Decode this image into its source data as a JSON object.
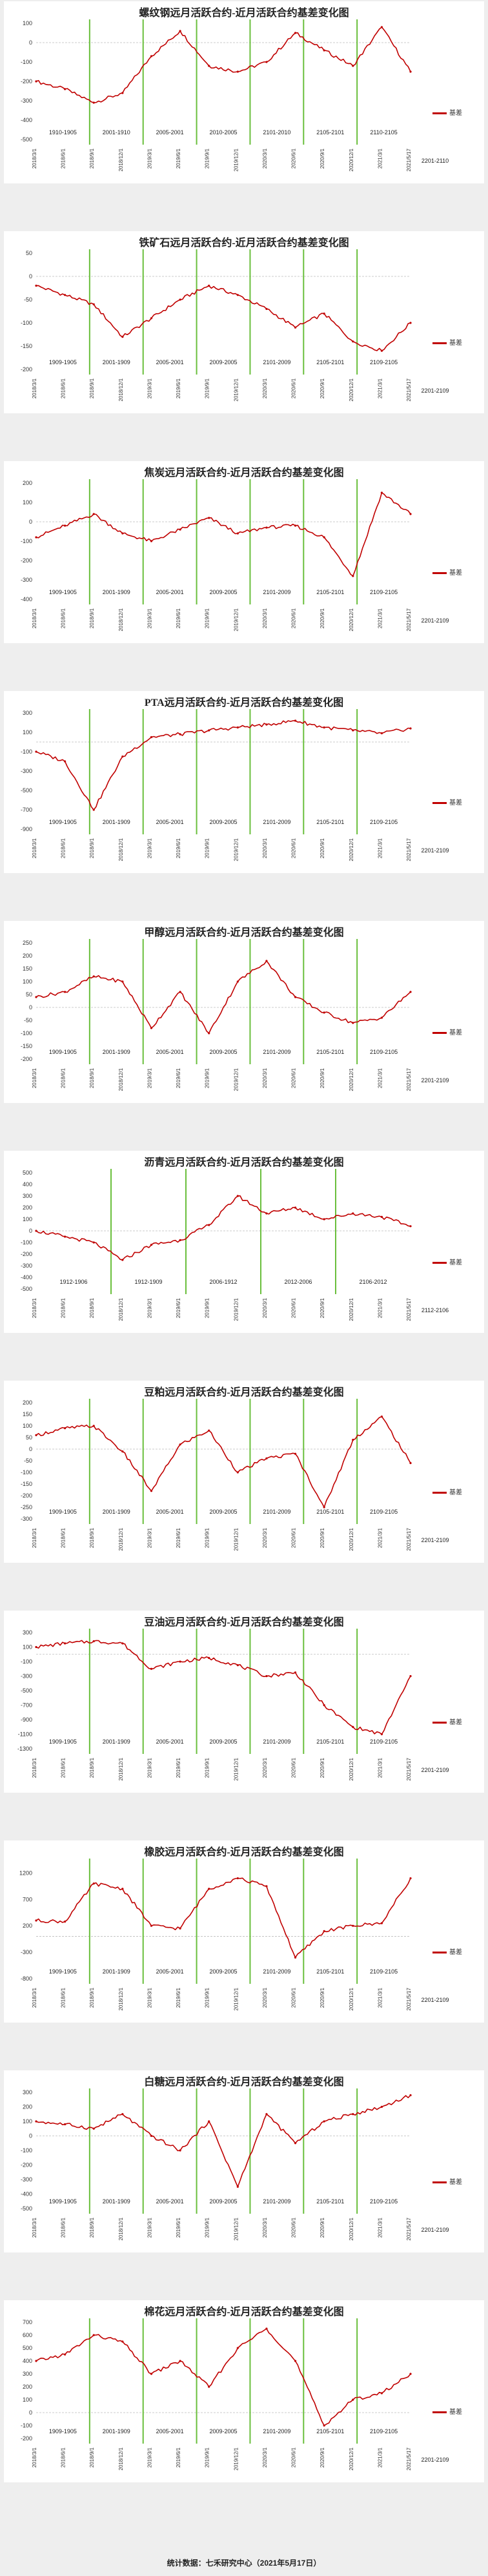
{
  "footer": "统计数据：七禾研究中心（2021年5月17日）",
  "colors": {
    "series": "#c00000",
    "divider": "#6abf3c",
    "panel": "#ffffff",
    "background": "#eeeeee"
  },
  "chart_data": [
    {
      "type": "line",
      "title": "螺纹钢远月活跃合约-近月活跃合约基差变化图",
      "legend": "基差",
      "legend_position": "right",
      "ylim": [
        -500,
        100
      ],
      "yticks": [
        -500,
        -400,
        -300,
        -200,
        -100,
        0,
        100
      ],
      "x": [
        "2018/3/1",
        "2018/6/1",
        "2018/9/1",
        "2018/12/1",
        "2019/3/1",
        "2019/6/1",
        "2019/9/1",
        "2019/12/1",
        "2020/3/1",
        "2020/6/1",
        "2020/9/1",
        "2020/12/1",
        "2021/3/1",
        "2021/5/17"
      ],
      "y": [
        -200,
        -240,
        -310,
        -260,
        -70,
        60,
        -120,
        -150,
        -100,
        50,
        -40,
        -120,
        80,
        -150
      ],
      "periods": [
        "1910-1905",
        "2001-1910",
        "2005-2001",
        "2010-2005",
        "2101-2010",
        "2105-2101",
        "2110-2105",
        "2201-2110"
      ]
    },
    {
      "type": "line",
      "title": "铁矿石远月活跃合约-近月活跃合约基差变化图",
      "legend": "基差",
      "legend_position": "right",
      "ylim": [
        -200,
        50
      ],
      "yticks": [
        -200,
        -150,
        -100,
        -50,
        0,
        50
      ],
      "x": [
        "2018/3/1",
        "2018/6/1",
        "2018/9/1",
        "2018/12/1",
        "2019/3/1",
        "2019/6/1",
        "2019/9/1",
        "2019/12/1",
        "2020/3/1",
        "2020/6/1",
        "2020/9/1",
        "2020/12/1",
        "2021/3/1",
        "2021/5/17"
      ],
      "y": [
        -20,
        -40,
        -60,
        -130,
        -90,
        -50,
        -20,
        -40,
        -70,
        -110,
        -80,
        -140,
        -160,
        -100
      ],
      "periods": [
        "1909-1905",
        "2001-1909",
        "2005-2001",
        "2009-2005",
        "2101-2009",
        "2105-2101",
        "2109-2105",
        "2201-2109"
      ]
    },
    {
      "type": "line",
      "title": "焦炭远月活跃合约-近月活跃合约基差变化图",
      "legend": "基差",
      "legend_position": "right",
      "ylim": [
        -400,
        200
      ],
      "yticks": [
        -400,
        -300,
        -200,
        -100,
        0,
        100,
        200
      ],
      "x": [
        "2018/3/1",
        "2018/6/1",
        "2018/9/1",
        "2018/12/1",
        "2019/3/1",
        "2019/6/1",
        "2019/9/1",
        "2019/12/1",
        "2020/3/1",
        "2020/6/1",
        "2020/9/1",
        "2020/12/1",
        "2021/3/1",
        "2021/5/17"
      ],
      "y": [
        -80,
        -20,
        40,
        -60,
        -100,
        -40,
        20,
        -60,
        -30,
        -20,
        -80,
        -280,
        150,
        40
      ],
      "periods": [
        "1909-1905",
        "2001-1909",
        "2005-2001",
        "2009-2005",
        "2101-2009",
        "2105-2101",
        "2109-2105",
        "2201-2109"
      ]
    },
    {
      "type": "line",
      "title": "PTA远月活跃合约-近月活跃合约基差变化图",
      "legend": "基差",
      "legend_position": "right",
      "ylim": [
        -900,
        300
      ],
      "yticks": [
        -900,
        -700,
        -500,
        -300,
        -100,
        100,
        300
      ],
      "x": [
        "2018/3/1",
        "2018/6/1",
        "2018/9/1",
        "2018/12/1",
        "2019/3/1",
        "2019/6/1",
        "2019/9/1",
        "2019/12/1",
        "2020/3/1",
        "2020/6/1",
        "2020/9/1",
        "2020/12/1",
        "2021/3/1",
        "2021/5/17"
      ],
      "y": [
        -100,
        -200,
        -700,
        -150,
        50,
        80,
        120,
        150,
        180,
        220,
        150,
        120,
        90,
        140
      ],
      "periods": [
        "1909-1905",
        "2001-1909",
        "2005-2001",
        "2009-2005",
        "2101-2009",
        "2105-2101",
        "2109-2105",
        "2201-2109"
      ]
    },
    {
      "type": "line",
      "title": "甲醇远月活跃合约-近月活跃合约基差变化图",
      "legend": "基差",
      "legend_position": "right",
      "ylim": [
        -200,
        250
      ],
      "yticks": [
        -200,
        -150,
        -100,
        -50,
        0,
        50,
        100,
        150,
        200,
        250
      ],
      "x": [
        "2018/3/1",
        "2018/6/1",
        "2018/9/1",
        "2018/12/1",
        "2019/3/1",
        "2019/6/1",
        "2019/9/1",
        "2019/12/1",
        "2020/3/1",
        "2020/6/1",
        "2020/9/1",
        "2020/12/1",
        "2021/3/1",
        "2021/5/17"
      ],
      "y": [
        40,
        60,
        120,
        100,
        -80,
        60,
        -100,
        100,
        180,
        40,
        -20,
        -60,
        -40,
        60
      ],
      "periods": [
        "1909-1905",
        "2001-1909",
        "2005-2001",
        "2009-2005",
        "2101-2009",
        "2105-2101",
        "2109-2105",
        "2201-2109"
      ]
    },
    {
      "type": "line",
      "title": "沥青远月活跃合约-近月活跃合约基差变化图",
      "legend": "基差",
      "legend_position": "right",
      "ylim": [
        -500,
        500
      ],
      "yticks": [
        -500,
        -400,
        -300,
        -200,
        -100,
        0,
        100,
        200,
        300,
        400,
        500
      ],
      "x": [
        "2018/3/1",
        "2018/6/1",
        "2018/9/1",
        "2018/12/1",
        "2019/3/1",
        "2019/6/1",
        "2019/9/1",
        "2019/12/1",
        "2020/3/1",
        "2020/6/1",
        "2020/9/1",
        "2020/12/1",
        "2021/3/1",
        "2021/5/17"
      ],
      "y": [
        0,
        -50,
        -100,
        -250,
        -120,
        -80,
        50,
        300,
        150,
        200,
        100,
        150,
        120,
        40
      ],
      "periods": [
        "1912-1906",
        "1912-1909",
        "2006-1912",
        "2012-2006",
        "2106-2012",
        "2112-2106"
      ]
    },
    {
      "type": "line",
      "title": "豆粕远月活跃合约-近月活跃合约基差变化图",
      "legend": "基差",
      "legend_position": "right",
      "ylim": [
        -300,
        200
      ],
      "yticks": [
        -300,
        -250,
        -200,
        -150,
        -100,
        -50,
        0,
        50,
        100,
        150,
        200
      ],
      "x": [
        "2018/3/1",
        "2018/6/1",
        "2018/9/1",
        "2018/12/1",
        "2019/3/1",
        "2019/6/1",
        "2019/9/1",
        "2019/12/1",
        "2020/3/1",
        "2020/6/1",
        "2020/9/1",
        "2020/12/1",
        "2021/3/1",
        "2021/5/17"
      ],
      "y": [
        60,
        90,
        100,
        -10,
        -180,
        20,
        80,
        -100,
        -40,
        -20,
        -250,
        40,
        140,
        -60
      ],
      "periods": [
        "1909-1905",
        "2001-1909",
        "2005-2001",
        "2009-2005",
        "2101-2009",
        "2105-2101",
        "2109-2105",
        "2201-2109"
      ]
    },
    {
      "type": "line",
      "title": "豆油远月活跃合约-近月活跃合约基差变化图",
      "legend": "基差",
      "legend_position": "right",
      "ylim": [
        -1300,
        300
      ],
      "yticks": [
        -1300,
        -1100,
        -900,
        -700,
        -500,
        -300,
        -100,
        100,
        300
      ],
      "x": [
        "2018/3/1",
        "2018/6/1",
        "2018/9/1",
        "2018/12/1",
        "2019/3/1",
        "2019/6/1",
        "2019/9/1",
        "2019/12/1",
        "2020/3/1",
        "2020/6/1",
        "2020/9/1",
        "2020/12/1",
        "2021/3/1",
        "2021/5/17"
      ],
      "y": [
        100,
        150,
        180,
        150,
        -200,
        -100,
        -50,
        -150,
        -300,
        -250,
        -700,
        -1000,
        -1100,
        -300
      ],
      "periods": [
        "1909-1905",
        "2001-1909",
        "2005-2001",
        "2009-2005",
        "2101-2009",
        "2105-2101",
        "2109-2105",
        "2201-2109"
      ]
    },
    {
      "type": "line",
      "title": "橡胶远月活跃合约-近月活跃合约基差变化图",
      "legend": "基差",
      "legend_position": "right",
      "ylim": [
        -800,
        1400
      ],
      "yticks": [
        -800,
        -300,
        200,
        700,
        1200
      ],
      "x": [
        "2018/3/1",
        "2018/6/1",
        "2018/9/1",
        "2018/12/1",
        "2019/3/1",
        "2019/6/1",
        "2019/9/1",
        "2019/12/1",
        "2020/3/1",
        "2020/6/1",
        "2020/9/1",
        "2020/12/1",
        "2021/3/1",
        "2021/5/17"
      ],
      "y": [
        300,
        280,
        1000,
        900,
        200,
        150,
        900,
        1100,
        950,
        -400,
        100,
        200,
        250,
        1100
      ],
      "periods": [
        "1909-1905",
        "2001-1909",
        "2005-2001",
        "2009-2005",
        "2101-2009",
        "2105-2101",
        "2109-2105",
        "2201-2109"
      ]
    },
    {
      "type": "line",
      "title": "白糖远月活跃合约-近月活跃合约基差变化图",
      "legend": "基差",
      "legend_position": "right",
      "ylim": [
        -500,
        300
      ],
      "yticks": [
        -500,
        -400,
        -300,
        -200,
        -100,
        0,
        100,
        200,
        300
      ],
      "x": [
        "2018/3/1",
        "2018/6/1",
        "2018/9/1",
        "2018/12/1",
        "2019/3/1",
        "2019/6/1",
        "2019/9/1",
        "2019/12/1",
        "2020/3/1",
        "2020/6/1",
        "2020/9/1",
        "2020/12/1",
        "2021/3/1",
        "2021/5/17"
      ],
      "y": [
        100,
        80,
        50,
        150,
        0,
        -100,
        100,
        -350,
        150,
        -50,
        100,
        150,
        200,
        280
      ],
      "periods": [
        "1909-1905",
        "2001-1909",
        "2005-2001",
        "2009-2005",
        "2101-2009",
        "2105-2101",
        "2109-2105",
        "2201-2109"
      ]
    },
    {
      "type": "line",
      "title": "棉花远月活跃合约-近月活跃合约基差变化图",
      "legend": "基差",
      "legend_position": "right",
      "ylim": [
        -200,
        700
      ],
      "yticks": [
        -200,
        -100,
        0,
        100,
        200,
        300,
        400,
        500,
        600,
        700
      ],
      "x": [
        "2018/3/1",
        "2018/6/1",
        "2018/9/1",
        "2018/12/1",
        "2019/3/1",
        "2019/6/1",
        "2019/9/1",
        "2019/12/1",
        "2020/3/1",
        "2020/6/1",
        "2020/9/1",
        "2020/12/1",
        "2021/3/1",
        "2021/5/17"
      ],
      "y": [
        400,
        450,
        600,
        550,
        300,
        400,
        200,
        500,
        650,
        400,
        -100,
        100,
        150,
        300
      ],
      "periods": [
        "1909-1905",
        "2001-1909",
        "2005-2001",
        "2009-2005",
        "2101-2009",
        "2105-2101",
        "2109-2105",
        "2201-2109"
      ]
    }
  ]
}
